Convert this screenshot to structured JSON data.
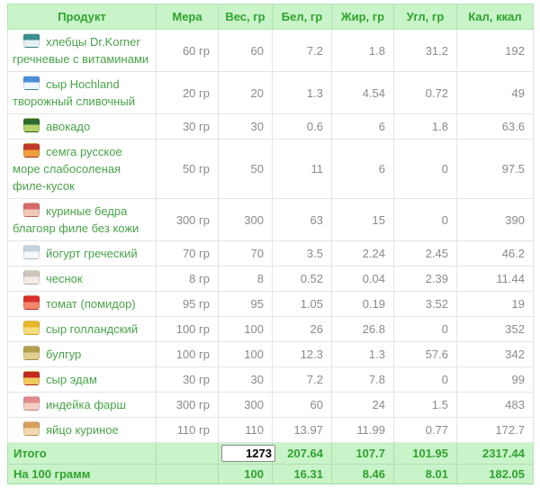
{
  "table": {
    "columns": [
      {
        "label": "Продукт"
      },
      {
        "label": "Мера"
      },
      {
        "label": "Вес, гр"
      },
      {
        "label": "Бел, гр"
      },
      {
        "label": "Жир, гр"
      },
      {
        "label": "Угл, гр"
      },
      {
        "label": "Кал, ккал"
      }
    ],
    "rows": [
      {
        "icon": {
          "name": "crispbread-jar-icon",
          "top": "#3d8f8f",
          "bottom": "#e6f2f2"
        },
        "name": "хлебцы Dr.Korner гречневые с витаминами",
        "measure": "60 гр",
        "weight": "60",
        "protein": "7.2",
        "fat": "1.8",
        "carbs": "31.2",
        "kcal": "192"
      },
      {
        "icon": {
          "name": "cream-cheese-tub-icon",
          "top": "#4a90d9",
          "bottom": "#eef6ff"
        },
        "name": "сыр Hochland творожный сливочный",
        "measure": "20 гр",
        "weight": "20",
        "protein": "1.3",
        "fat": "4.54",
        "carbs": "0.72",
        "kcal": "49"
      },
      {
        "icon": {
          "name": "avocado-icon",
          "top": "#2f6b2f",
          "bottom": "#b5d36b"
        },
        "name": "авокадо",
        "measure": "30 гр",
        "weight": "30",
        "protein": "0.6",
        "fat": "6",
        "carbs": "1.8",
        "kcal": "63.6"
      },
      {
        "icon": {
          "name": "salmon-pack-icon",
          "top": "#c23a2a",
          "bottom": "#f2a03c"
        },
        "name": "семга русское море слабосоленая филе-кусок",
        "measure": "50 гр",
        "weight": "50",
        "protein": "11",
        "fat": "6",
        "carbs": "0",
        "kcal": "97.5"
      },
      {
        "icon": {
          "name": "chicken-thigh-icon",
          "top": "#d96a6a",
          "bottom": "#f2c9b8"
        },
        "name": "куриные бедра благояр филе без кожи",
        "measure": "300 гр",
        "weight": "300",
        "protein": "63",
        "fat": "15",
        "carbs": "0",
        "kcal": "390"
      },
      {
        "icon": {
          "name": "yogurt-cup-icon",
          "top": "#c3d2de",
          "bottom": "#f5f8fa"
        },
        "name": "йогурт греческий",
        "measure": "70 гр",
        "weight": "70",
        "protein": "3.5",
        "fat": "2.24",
        "carbs": "2.45",
        "kcal": "46.2"
      },
      {
        "icon": {
          "name": "garlic-icon",
          "top": "#cfc6bc",
          "bottom": "#f2ede6"
        },
        "name": "чеснок",
        "measure": "8 гр",
        "weight": "8",
        "protein": "0.52",
        "fat": "0.04",
        "carbs": "2.39",
        "kcal": "11.44"
      },
      {
        "icon": {
          "name": "tomato-icon",
          "top": "#d9302a",
          "bottom": "#f2876b"
        },
        "name": "томат (помидор)",
        "measure": "95 гр",
        "weight": "95",
        "protein": "1.05",
        "fat": "0.19",
        "carbs": "3.52",
        "kcal": "19"
      },
      {
        "icon": {
          "name": "dutch-cheese-icon",
          "top": "#e8b62a",
          "bottom": "#f7dd7a"
        },
        "name": "сыр голландский",
        "measure": "100 гр",
        "weight": "100",
        "protein": "26",
        "fat": "26.8",
        "carbs": "0",
        "kcal": "352"
      },
      {
        "icon": {
          "name": "bulgur-grain-icon",
          "top": "#b3a04f",
          "bottom": "#e0cf8f"
        },
        "name": "булгур",
        "measure": "100 гр",
        "weight": "100",
        "protein": "12.3",
        "fat": "1.3",
        "carbs": "57.6",
        "kcal": "342"
      },
      {
        "icon": {
          "name": "edam-cheese-icon",
          "top": "#c22a20",
          "bottom": "#f2c95e"
        },
        "name": "сыр эдам",
        "measure": "30 гр",
        "weight": "30",
        "protein": "7.2",
        "fat": "7.8",
        "carbs": "0",
        "kcal": "99"
      },
      {
        "icon": {
          "name": "turkey-mince-icon",
          "top": "#e08a8a",
          "bottom": "#f5cfc2"
        },
        "name": "индейка фарш",
        "measure": "300 гр",
        "weight": "300",
        "protein": "60",
        "fat": "24",
        "carbs": "1.5",
        "kcal": "483"
      },
      {
        "icon": {
          "name": "egg-icon",
          "top": "#d9a05f",
          "bottom": "#f2d9b0"
        },
        "name": "яйцо куриное",
        "measure": "110 гр",
        "weight": "110",
        "protein": "13.97",
        "fat": "11.99",
        "carbs": "0.77",
        "kcal": "172.7"
      }
    ],
    "totals": {
      "label": "Итого",
      "measure": "",
      "weight_input": "1273",
      "protein": "207.64",
      "fat": "107.7",
      "carbs": "101.95",
      "kcal": "2317.44"
    },
    "per100": {
      "label": "На 100 грамм",
      "measure": "",
      "weight": "100",
      "protein": "16.31",
      "fat": "8.46",
      "carbs": "8.01",
      "kcal": "182.05"
    }
  },
  "colors": {
    "header_bg": "#c9f3c9",
    "header_text": "#2fa32f",
    "product_link": "#4aa34a",
    "number_text": "#8a8a8a",
    "footer_bg": "#c9f3c9",
    "footer_text": "#2fa32f"
  }
}
